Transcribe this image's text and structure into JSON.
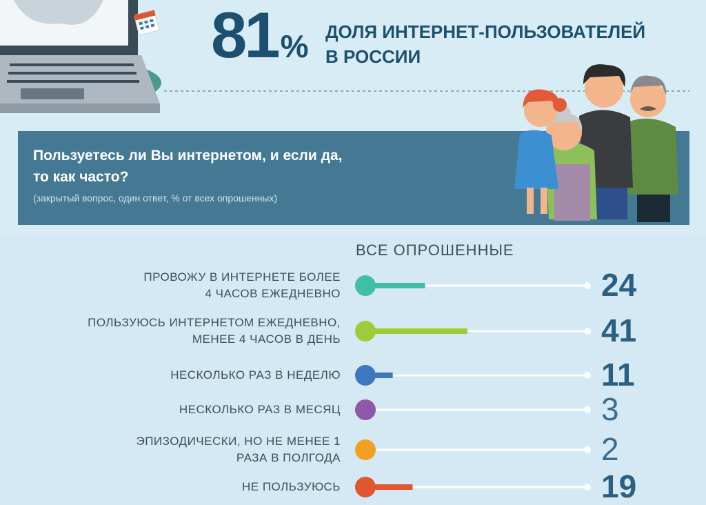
{
  "header": {
    "big_number": "81",
    "percent_sign": "%",
    "headline_line1": "ДОЛЯ ИНТЕРНЕТ-ПОЛЬЗОВАТЕЛЕЙ",
    "headline_line2": "В РОССИИ"
  },
  "question": {
    "title_line1": "Пользуетесь ли Вы интернетом, и если да,",
    "title_line2": "то как часто?",
    "note": "(закрытый вопрос, один ответ, % от всех опрошенных)"
  },
  "chart_data": {
    "type": "bar",
    "title": "ВСЕ ОПРОШЕННЫЕ",
    "unit": "%",
    "categories": [
      "ПРОВОЖУ В ИНТЕРНЕТЕ БОЛЕЕ 4 ЧАСОВ ЕЖЕДНЕВНО",
      "ПОЛЬЗУЮСЬ ИНТЕРНЕТОМ ЕЖЕДНЕВНО, МЕНЕЕ 4 ЧАСОВ В ДЕНЬ",
      "НЕСКОЛЬКО РАЗ В НЕДЕЛЮ",
      "НЕСКОЛЬКО РАЗ В МЕСЯЦ",
      "ЭПИЗОДИЧЕСКИ, НО НЕ МЕНЕЕ 1 РАЗА В ПОЛГОДА",
      "НЕ ПОЛЬЗУЮСЬ"
    ],
    "values": [
      24,
      41,
      11,
      3,
      2,
      19
    ],
    "xlim": [
      0,
      100
    ],
    "rows": [
      {
        "line1": "ПРОВОЖУ В ИНТЕРНЕТЕ БОЛЕЕ",
        "line2": "4 ЧАСОВ  ЕЖЕДНЕВНО",
        "value": 24,
        "label": "24",
        "color": "#3fbfa9"
      },
      {
        "line1": "ПОЛЬЗУЮСЬ ИНТЕРНЕТОМ ЕЖЕДНЕВНО,",
        "line2": "МЕНЕЕ 4 ЧАСОВ В ДЕНЬ",
        "value": 41,
        "label": "41",
        "color": "#9ccc3a"
      },
      {
        "line1": "НЕСКОЛЬКО РАЗ В НЕДЕЛЮ",
        "line2": "",
        "value": 11,
        "label": "11",
        "color": "#3d78bf"
      },
      {
        "line1": "НЕСКОЛЬКО РАЗ В МЕСЯЦ",
        "line2": "",
        "value": 3,
        "label": "3",
        "color": "#8c5aa8"
      },
      {
        "line1": "ЭПИЗОДИЧЕСКИ, НО НЕ МЕНЕЕ 1",
        "line2": "РАЗА В ПОЛГОДА",
        "value": 2,
        "label": "2",
        "color": "#f0a022"
      },
      {
        "line1": "НЕ ПОЛЬЗУЮСЬ",
        "line2": "",
        "value": 19,
        "label": "19",
        "color": "#e0562e"
      }
    ]
  },
  "colors": {
    "background": "#d8ecf6",
    "dark_blue": "#1d4f6e",
    "banner": "#457993",
    "track": "#ffffff"
  }
}
